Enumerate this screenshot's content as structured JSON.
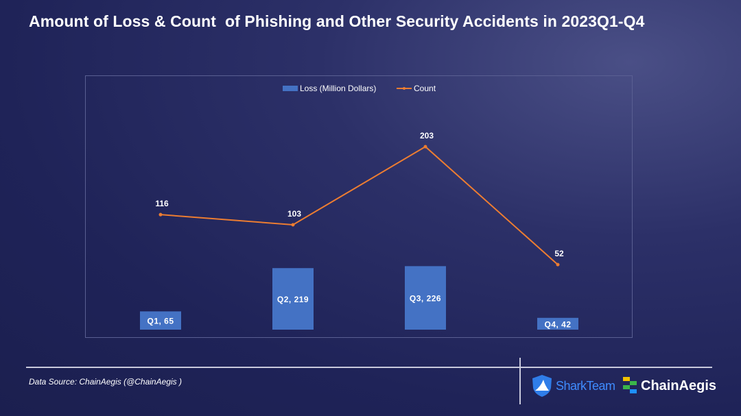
{
  "title": "Amount of Loss & Count  of Phishing and Other Security Accidents in 2023Q1-Q4",
  "source": "Data Source: ChainAegis (@ChainAegis )",
  "logos": {
    "sharkteam": "SharkTeam",
    "chainaegis": "ChainAegis"
  },
  "colors": {
    "bar": "#4472c4",
    "line": "#ed7d31"
  },
  "chart_data": {
    "type": "bar",
    "categories": [
      "Q1",
      "Q2",
      "Q3",
      "Q4"
    ],
    "series": [
      {
        "name": "Loss (Million Dollars)",
        "type": "bar",
        "values": [
          65,
          219,
          226,
          42
        ],
        "data_labels": [
          "Q1, 65",
          "Q2, 219",
          "Q3, 226",
          "Q4, 42"
        ]
      },
      {
        "name": "Count",
        "type": "line",
        "values": [
          116,
          103,
          203,
          52
        ],
        "data_labels": [
          "116",
          "103",
          "203",
          "52"
        ]
      }
    ],
    "legend": "top-center",
    "grid": false
  }
}
